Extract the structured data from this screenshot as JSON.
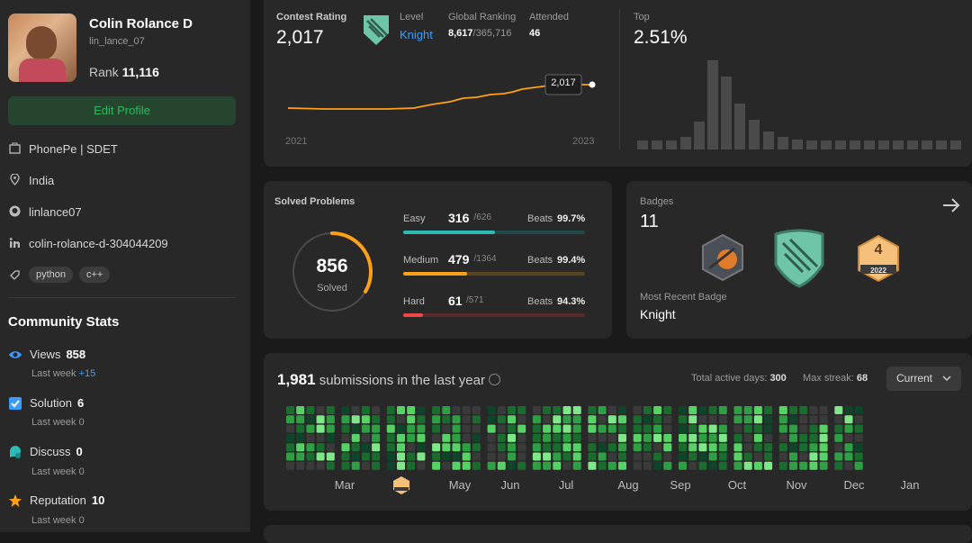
{
  "profile": {
    "name": "Colin Rolance D",
    "username": "lin_lance_07",
    "rank_label": "Rank",
    "rank": "11,116",
    "edit_button": "Edit Profile",
    "company": "PhonePe | SDET",
    "location": "India",
    "github": "linlance07",
    "linkedin": "colin-rolance-d-304044209",
    "skills": [
      "python",
      "c++"
    ]
  },
  "community_stats": {
    "title": "Community Stats",
    "items": [
      {
        "label": "Views",
        "value": "858",
        "last_week_label": "Last week",
        "last_week": "+15"
      },
      {
        "label": "Solution",
        "value": "6",
        "last_week_label": "Last week",
        "last_week": "0"
      },
      {
        "label": "Discuss",
        "value": "0",
        "last_week_label": "Last week",
        "last_week": "0"
      },
      {
        "label": "Reputation",
        "value": "10",
        "last_week_label": "Last week",
        "last_week": "0"
      }
    ]
  },
  "contest": {
    "rating_label": "Contest Rating",
    "rating": "2,017",
    "level_label": "Level",
    "level": "Knight",
    "global_label": "Global Ranking",
    "global": "8,617",
    "global_total": "/365,716",
    "attended_label": "Attended",
    "attended": "46",
    "tooltip": "2,017",
    "x_start": "2021",
    "x_end": "2023",
    "top_label": "Top",
    "top": "2.51%"
  },
  "solved": {
    "title": "Solved Problems",
    "total": "856",
    "total_label": "Solved",
    "rows": [
      {
        "level": "Easy",
        "solved": "316",
        "total": "/626",
        "beats_label": "Beats",
        "beats": "99.7%"
      },
      {
        "level": "Medium",
        "solved": "479",
        "total": "/1364",
        "beats_label": "Beats",
        "beats": "99.4%"
      },
      {
        "level": "Hard",
        "solved": "61",
        "total": "/571",
        "beats_label": "Beats",
        "beats": "94.3%"
      }
    ]
  },
  "badges": {
    "title": "Badges",
    "count": "11",
    "badge_number": "4",
    "badge_year": "2022",
    "recent_label": "Most Recent Badge",
    "recent": "Knight"
  },
  "submissions": {
    "count": "1,981",
    "text": "submissions in the last year",
    "active_label": "Total active days:",
    "active": "300",
    "streak_label": "Max streak:",
    "streak": "68",
    "dropdown": "Current",
    "months": [
      "Mar",
      "May",
      "Jun",
      "Jul",
      "Aug",
      "Sep",
      "Oct",
      "Nov",
      "Dec",
      "Jan"
    ]
  }
}
